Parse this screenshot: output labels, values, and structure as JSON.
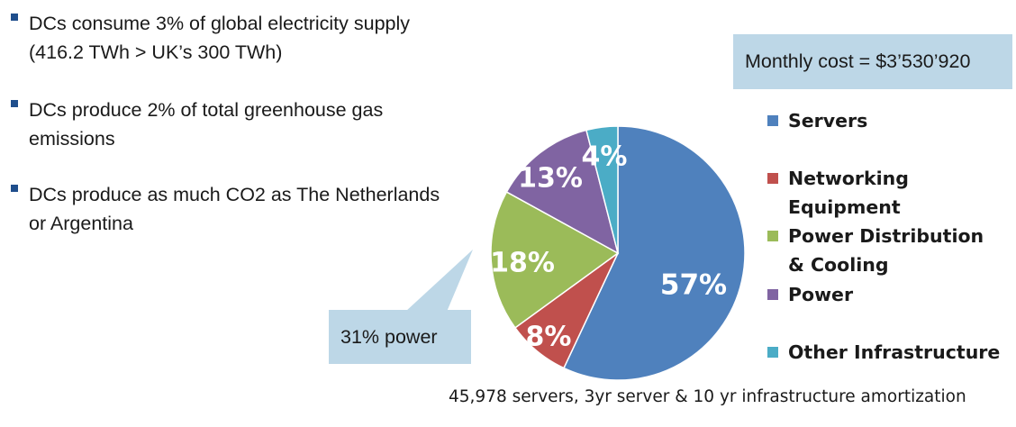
{
  "bullets": [
    {
      "lines": [
        "DCs consume 3% of global electricity supply",
        "(416.2 TWh > UK’s 300 TWh)"
      ]
    },
    {
      "lines": [
        "DCs produce 2% of total greenhouse gas",
        "emissions"
      ]
    },
    {
      "lines": [
        "DCs produce as much CO2 as The Netherlands",
        "or Argentina"
      ]
    }
  ],
  "cost_box": "Monthly cost = $3’530’920",
  "callout": "31% power",
  "footnote": "45,978 servers, 3yr server & 10 yr infrastructure amortization",
  "colors": {
    "bullet": "#1f4e8c",
    "box": "#bdd7e7"
  },
  "chart_data": {
    "type": "pie",
    "slices": [
      {
        "name": "Servers",
        "legend_lines": [
          "Servers"
        ],
        "value": 57,
        "label": "57%",
        "color": "#4f81bd"
      },
      {
        "name": "Networking Equipment",
        "legend_lines": [
          "Networking",
          "Equipment"
        ],
        "value": 8,
        "label": "8%",
        "color": "#c0504d"
      },
      {
        "name": "Power Distribution & Cooling",
        "legend_lines": [
          "Power Distribution",
          "& Cooling"
        ],
        "value": 18,
        "label": "18%",
        "color": "#9bbb59"
      },
      {
        "name": "Power",
        "legend_lines": [
          "Power"
        ],
        "value": 13,
        "label": "13%",
        "color": "#8064a2"
      },
      {
        "name": "Other Infrastructure",
        "legend_lines": [
          "Other Infrastructure"
        ],
        "value": 4,
        "label": "4%",
        "color": "#4bacc6"
      }
    ],
    "legend_position": "right"
  }
}
